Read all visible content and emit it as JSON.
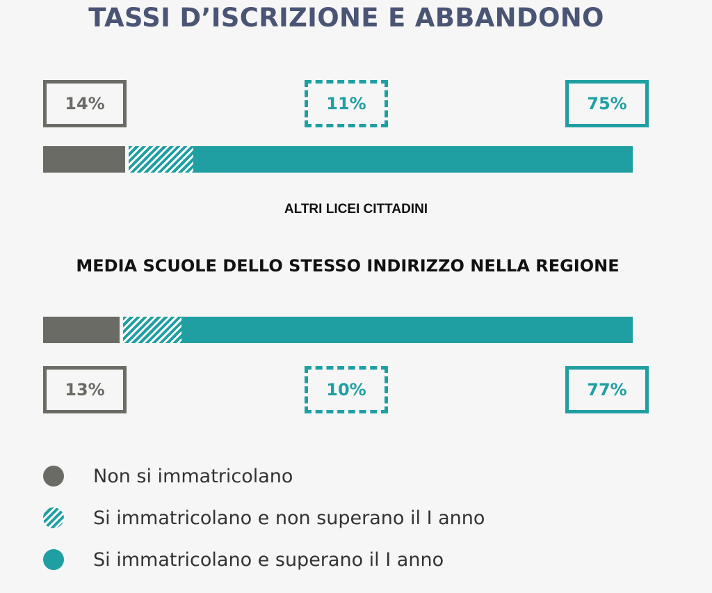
{
  "chart_data": {
    "type": "bar",
    "title": "TASSI D’ISCRIZIONE E ABBANDONO",
    "stacked": true,
    "orientation": "horizontal",
    "groups": [
      {
        "label": "ALTRI LICEI CITTADINI",
        "values": [
          14,
          11,
          75
        ],
        "value_labels": [
          "14%",
          "11%",
          "75%"
        ]
      },
      {
        "label": "MEDIA SCUOLE DELLO STESSO INDIRIZZO NELLA REGIONE",
        "values": [
          13,
          10,
          77
        ],
        "value_labels": [
          "13%",
          "10%",
          "77%"
        ]
      }
    ],
    "series": [
      {
        "name": "Non si immatricolano",
        "color": "#6b6b66",
        "pattern": "solid"
      },
      {
        "name": "Si immatricolano e non superano il I anno",
        "color": "#1f9fa2",
        "pattern": "hatched"
      },
      {
        "name": "Si immatricolano e superano il I anno",
        "color": "#1f9fa2",
        "pattern": "solid"
      }
    ],
    "xlim": [
      0,
      100
    ],
    "legend_position": "bottom-left",
    "grid": false
  }
}
